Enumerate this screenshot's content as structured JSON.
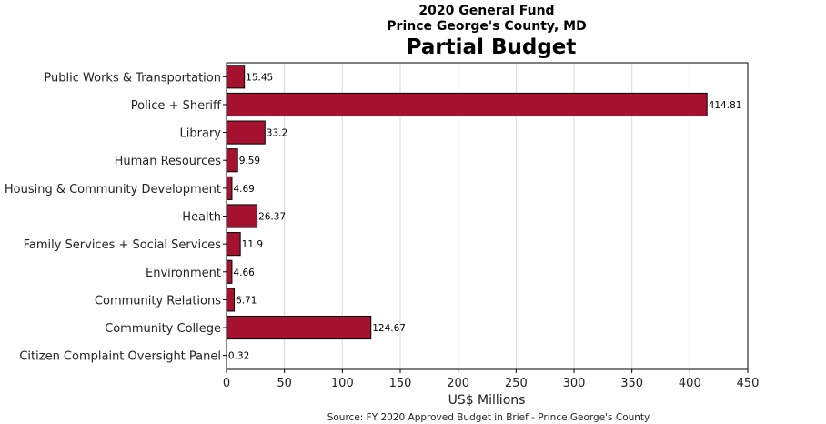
{
  "chart_data": {
    "type": "bar",
    "orientation": "horizontal",
    "title_line1": "2020 General Fund",
    "title_line2": "Prince George's County, MD",
    "title": "Partial Budget",
    "xlabel": "US$ Millions",
    "ylabel": "",
    "source": "Source: FY 2020 Approved Budget in Brief - Prince George's County",
    "xlim": [
      0,
      450
    ],
    "xticks": [
      0,
      50,
      100,
      150,
      200,
      250,
      300,
      350,
      400,
      450
    ],
    "grid": "vertical",
    "bar_color": "#a51230",
    "categories": [
      "Public Works & Transportation",
      "Police + Sheriff",
      "Library",
      "Human Resources",
      "Housing & Community Development",
      "Health",
      "Family Services + Social Services",
      "Environment",
      "Community Relations",
      "Community College",
      "Citizen Complaint Oversight Panel"
    ],
    "values": [
      15.45,
      414.81,
      33.2,
      9.59,
      4.69,
      26.37,
      11.9,
      4.66,
      6.71,
      124.67,
      0.32
    ],
    "data_labels": [
      "15.45",
      "414.81",
      "33.2",
      "9.59",
      "4.69",
      "26.37",
      "11.9",
      "4.66",
      "6.71",
      "124.67",
      "0.32"
    ]
  }
}
